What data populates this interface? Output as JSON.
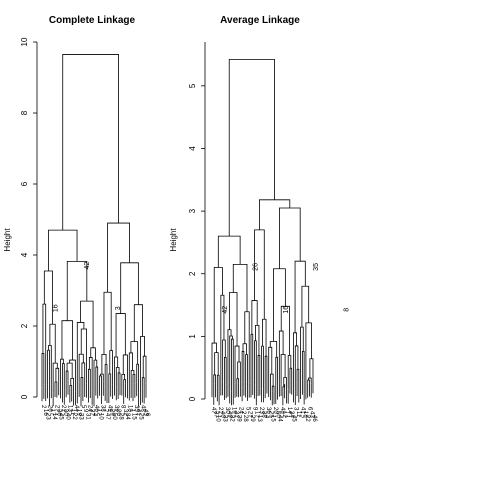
{
  "chart_data": [
    {
      "type": "dendrogram",
      "title": "Complete Linkage",
      "ylabel": "Height",
      "ylim": [
        0,
        10
      ],
      "yticks": [
        0,
        2,
        4,
        6,
        8,
        10
      ],
      "colors": {
        "line": "#000000",
        "background": "#ffffff"
      },
      "inner_labels": [
        "16",
        "42",
        "3"
      ],
      "leaf_labels": [
        "2",
        "16",
        "23",
        "26",
        "17",
        "14",
        "27",
        "36",
        "45",
        "21",
        "30",
        "40",
        "13",
        "11",
        "22",
        "44",
        "19",
        "33",
        "5",
        "9",
        "31",
        "24",
        "37",
        "4",
        "46",
        "12",
        "10",
        "38",
        "7",
        "47",
        "49",
        "29",
        "50",
        "39",
        "20",
        "28",
        "8",
        "32",
        "34",
        "18",
        "1",
        "15",
        "35",
        "41",
        "25",
        "48",
        "43",
        "6"
      ]
    },
    {
      "type": "dendrogram",
      "title": "Average Linkage",
      "ylabel": "Height",
      "ylim": [
        0,
        5.7
      ],
      "yticks": [
        0,
        1,
        2,
        3,
        4,
        5
      ],
      "colors": {
        "line": "#000000",
        "background": "#ffffff"
      },
      "inner_labels": [
        "42",
        "26",
        "16",
        "35",
        "8"
      ],
      "leaf_labels": [
        "47",
        "37",
        "10",
        "21",
        "40",
        "33",
        "30",
        "49",
        "32",
        "19",
        "31",
        "39",
        "24",
        "2",
        "28",
        "5",
        "27",
        "29",
        "9",
        "17",
        "13",
        "23",
        "38",
        "4",
        "36",
        "25",
        "15",
        "20",
        "50",
        "44",
        "48",
        "12",
        "1",
        "14",
        "34",
        "45",
        "3",
        "11",
        "7",
        "41",
        "18",
        "22",
        "6",
        "43",
        "46"
      ]
    }
  ]
}
